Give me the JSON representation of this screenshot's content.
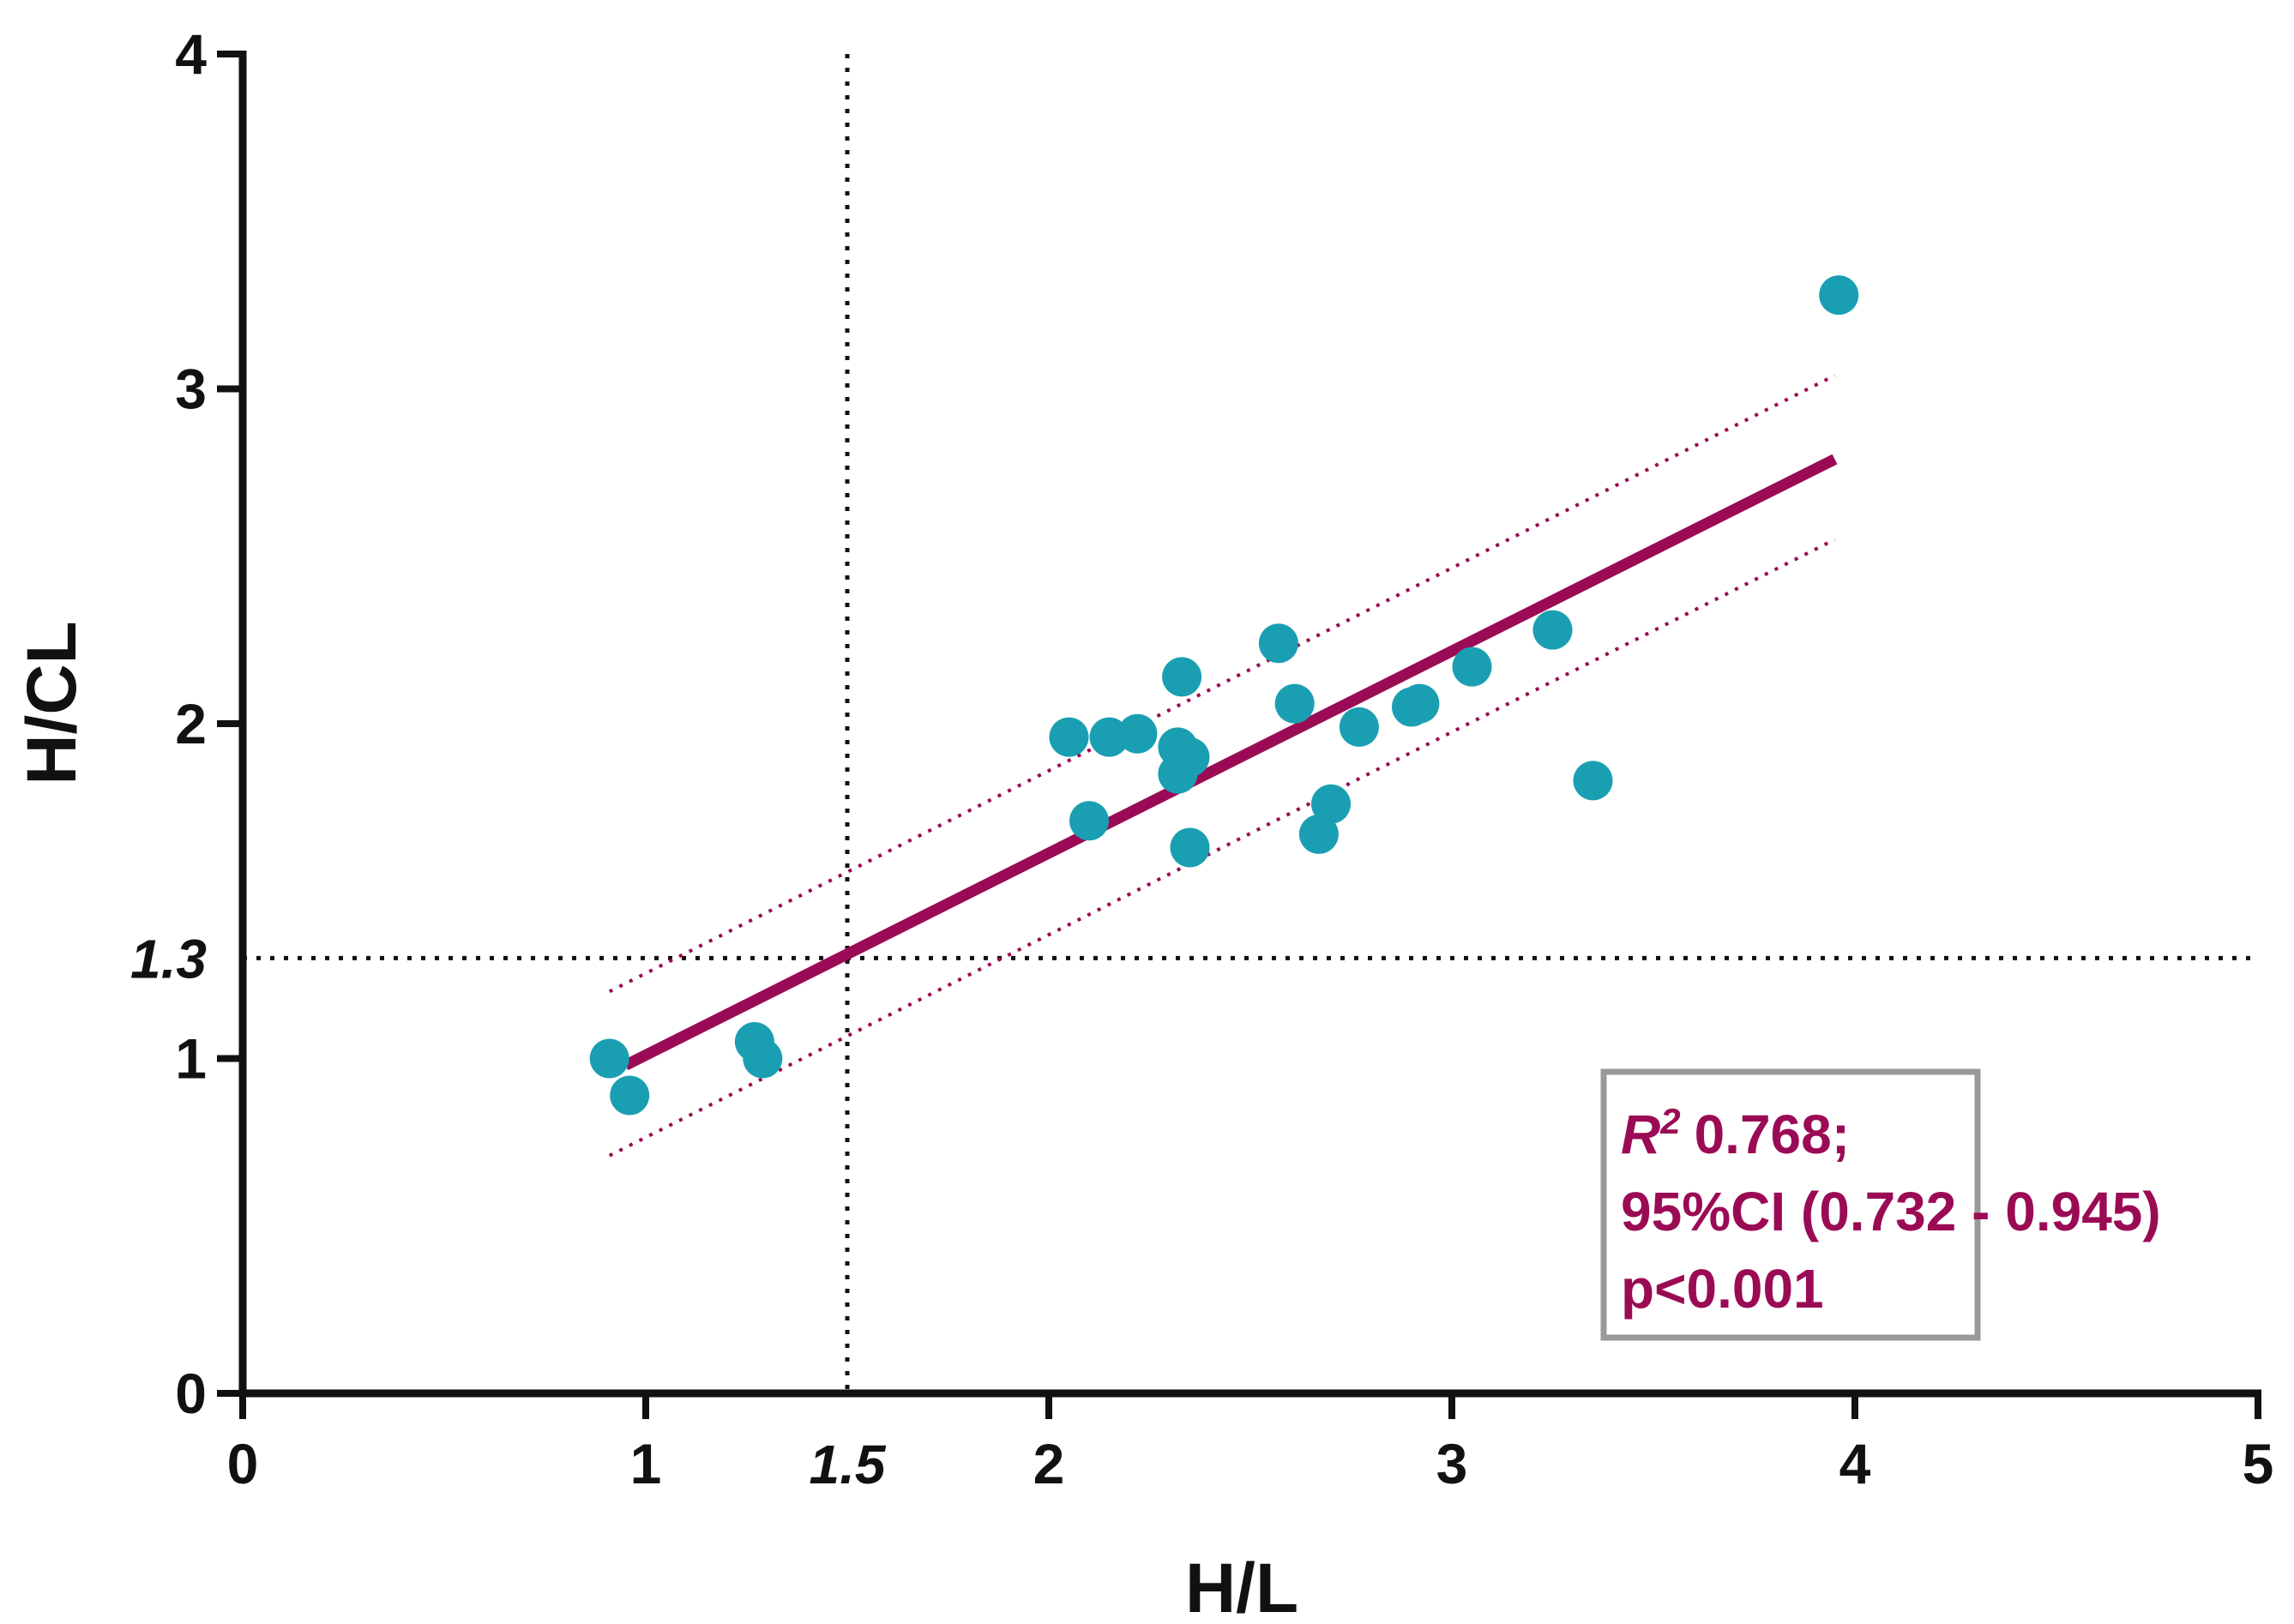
{
  "chart_data": {
    "type": "scatter",
    "xlabel": "H/L",
    "ylabel": "H/CL",
    "xlim": [
      0,
      5
    ],
    "ylim": [
      0,
      4
    ],
    "x_ticks": [
      {
        "value": 0,
        "label": "0"
      },
      {
        "value": 1,
        "label": "1"
      },
      {
        "value": 1.5,
        "label": "1.5",
        "italic": true
      },
      {
        "value": 2,
        "label": "2"
      },
      {
        "value": 3,
        "label": "3"
      },
      {
        "value": 4,
        "label": "4"
      },
      {
        "value": 5,
        "label": "5"
      }
    ],
    "y_ticks": [
      {
        "value": 0,
        "label": "0"
      },
      {
        "value": 1,
        "label": "1"
      },
      {
        "value": 1.3,
        "label": "1.3",
        "italic": true
      },
      {
        "value": 2,
        "label": "2"
      },
      {
        "value": 3,
        "label": "3"
      },
      {
        "value": 4,
        "label": "4"
      }
    ],
    "reference_lines": {
      "x": 1.5,
      "y": 1.3,
      "style": "dotted"
    },
    "points": [
      {
        "x": 0.91,
        "y": 1.0
      },
      {
        "x": 0.96,
        "y": 0.89
      },
      {
        "x": 1.27,
        "y": 1.05
      },
      {
        "x": 1.29,
        "y": 1.0
      },
      {
        "x": 2.05,
        "y": 1.96
      },
      {
        "x": 2.1,
        "y": 1.71
      },
      {
        "x": 2.15,
        "y": 1.96
      },
      {
        "x": 2.22,
        "y": 1.97
      },
      {
        "x": 2.32,
        "y": 1.93
      },
      {
        "x": 2.33,
        "y": 2.14
      },
      {
        "x": 2.35,
        "y": 1.9
      },
      {
        "x": 2.32,
        "y": 1.85
      },
      {
        "x": 2.35,
        "y": 1.63
      },
      {
        "x": 2.57,
        "y": 2.24
      },
      {
        "x": 2.61,
        "y": 2.06
      },
      {
        "x": 2.67,
        "y": 1.67
      },
      {
        "x": 2.7,
        "y": 1.76
      },
      {
        "x": 2.77,
        "y": 1.99
      },
      {
        "x": 2.9,
        "y": 2.05
      },
      {
        "x": 2.92,
        "y": 2.06
      },
      {
        "x": 3.05,
        "y": 2.17
      },
      {
        "x": 3.25,
        "y": 2.28
      },
      {
        "x": 3.35,
        "y": 1.83
      },
      {
        "x": 3.96,
        "y": 3.28
      }
    ],
    "regression": {
      "x": [
        0.95,
        3.95
      ],
      "y": [
        0.98,
        2.79
      ]
    },
    "confidence_band": {
      "upper": {
        "x": [
          0.91,
          3.95
        ],
        "y": [
          1.2,
          3.04
        ]
      },
      "lower": {
        "x": [
          0.91,
          3.95
        ],
        "y": [
          0.71,
          2.55
        ]
      }
    },
    "colors": {
      "points": "#1a9fb2",
      "line": "#9b0b55",
      "axis": "#111111",
      "box_border": "#999999"
    },
    "annotation": {
      "r_symbol": "R",
      "r_exponent": "2",
      "r_value": "0.768;",
      "ci": "95%CI (0.732 - 0.945)",
      "p": "p<0.001"
    }
  }
}
